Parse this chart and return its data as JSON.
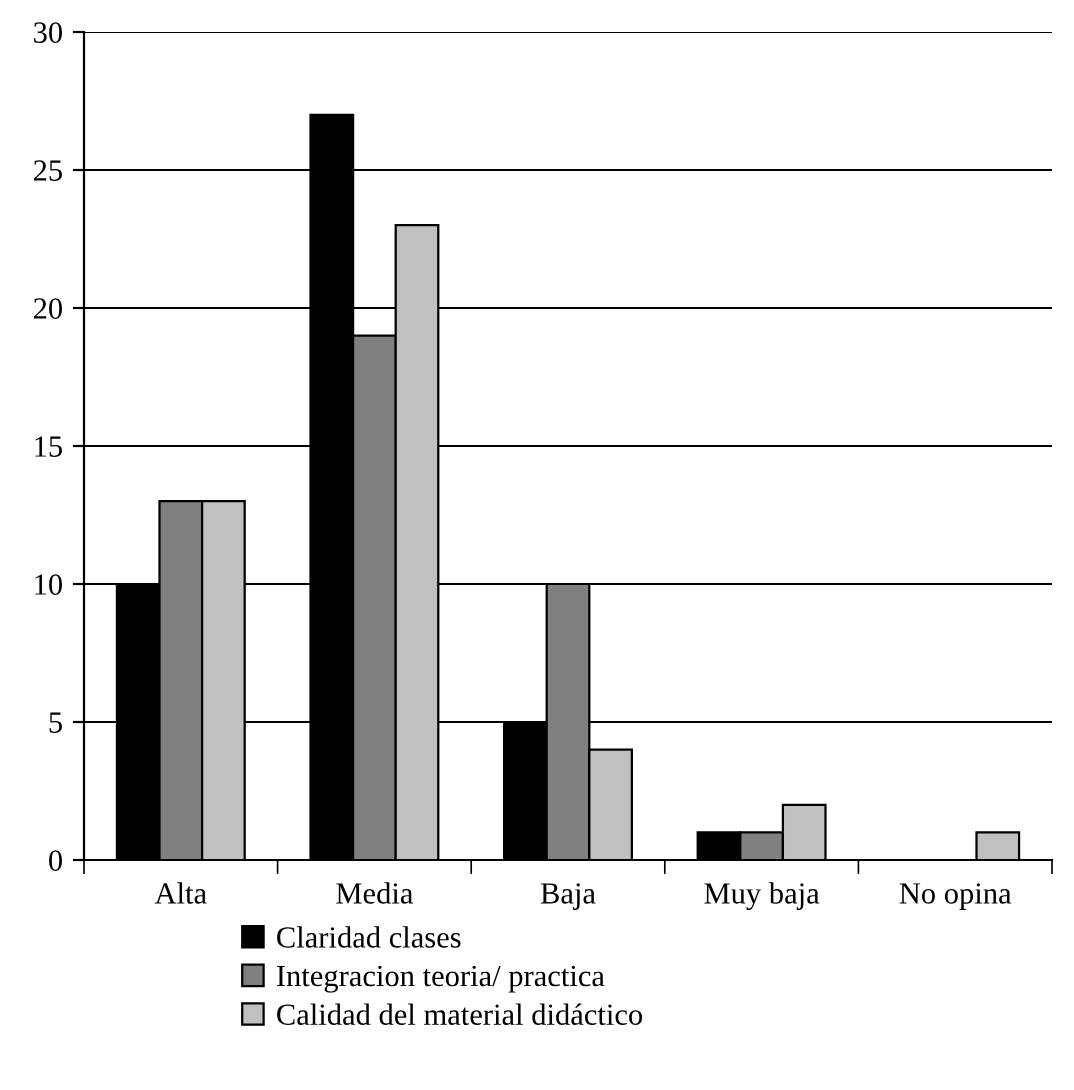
{
  "chart_data": {
    "type": "bar",
    "categories": [
      "Alta",
      "Media",
      "Baja",
      "Muy baja",
      "No opina"
    ],
    "series": [
      {
        "name": "Claridad clases",
        "color": "#000000",
        "values": [
          10,
          27,
          5,
          1,
          0
        ]
      },
      {
        "name": "Integracion teoria/ practica",
        "color": "#808080",
        "values": [
          13,
          19,
          10,
          1,
          0
        ]
      },
      {
        "name": "Calidad del material didáctico",
        "color": "#c0c0c0",
        "values": [
          13,
          23,
          4,
          2,
          1
        ]
      }
    ],
    "ylim": [
      0,
      30
    ],
    "yticks": [
      0,
      5,
      10,
      15,
      20,
      25,
      30
    ],
    "grid": "y",
    "legend": "bottom"
  }
}
